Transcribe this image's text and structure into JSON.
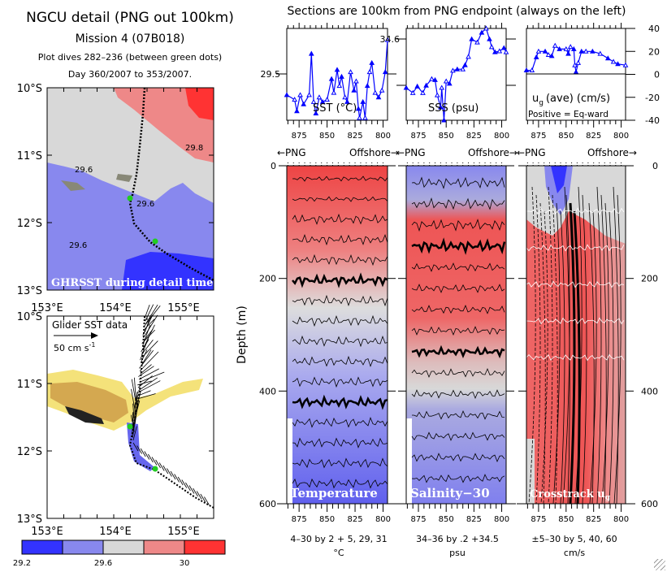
{
  "left": {
    "title": "NGCU detail (PNG out 100km)",
    "mission": "Mission 4 (07B018)",
    "dives": "Plot dives 282–236 (between green dots)",
    "days": "Day 360/2007 to 353/2007.",
    "lat_labels": [
      "10°S",
      "11°S",
      "12°S",
      "13°S"
    ],
    "lon_labels": [
      "153°E",
      "154°E",
      "155°E"
    ],
    "map1_caption": "GHRSST during detail time",
    "map1_contours": [
      "29.6",
      "29.6",
      "29.6",
      "29.8"
    ],
    "map2_caption": "Glider SST data",
    "vector_scale": "50 cm s",
    "vector_scale_exp": "-1",
    "colorbar": {
      "colors": [
        "#3333ff",
        "#8888ee",
        "#d8d8d8",
        "#ee8888",
        "#ff3333"
      ],
      "labels": [
        "29.2",
        "29.6",
        "30"
      ]
    }
  },
  "right": {
    "title": "Sections are 100km from PNG endpoint (always on the left)",
    "direction_left": "←PNG",
    "direction_right": "Offshore→",
    "depth_label": "Depth (m)",
    "depth_ticks": [
      "0",
      "200",
      "400",
      "600"
    ],
    "x_ticks": [
      "875",
      "850",
      "825",
      "800"
    ]
  },
  "chart_data": [
    {
      "type": "line",
      "name": "sst",
      "title": "SST (°C)",
      "xlabel": "",
      "ylabel": "",
      "xlim": [
        886,
        796
      ],
      "ylim": [
        29.3,
        29.7
      ],
      "ytick_labels": [
        "29.5"
      ],
      "color": "#0000ff",
      "x": [
        886,
        879,
        877,
        874,
        871,
        866,
        864,
        862,
        860,
        857,
        854,
        850,
        846,
        844,
        841,
        839,
        837,
        834,
        832,
        829,
        826,
        824,
        822,
        821,
        818,
        816,
        814,
        812,
        810,
        807,
        804,
        801,
        798,
        796
      ],
      "y": [
        29.41,
        29.39,
        29.34,
        29.41,
        29.37,
        29.41,
        29.59,
        29.38,
        29.33,
        29.4,
        29.38,
        29.39,
        29.48,
        29.42,
        29.52,
        29.45,
        29.49,
        29.4,
        29.38,
        29.51,
        29.43,
        29.47,
        29.35,
        29.31,
        29.38,
        29.31,
        29.45,
        29.51,
        29.55,
        29.42,
        29.4,
        29.43,
        29.51,
        29.65
      ]
    },
    {
      "type": "line",
      "name": "sss",
      "title": "SSS (psu)",
      "xlim": [
        886,
        796
      ],
      "ylim": [
        34.425,
        34.623
      ],
      "ytick_labels": [
        "34.6"
      ],
      "color": "#0000ff",
      "x": [
        886,
        880,
        876,
        871,
        868,
        863,
        860,
        858,
        855,
        854,
        852,
        850,
        847,
        844,
        840,
        835,
        833,
        830,
        827,
        822,
        818,
        814,
        811,
        809,
        806,
        802,
        798,
        796
      ],
      "y": [
        34.495,
        34.484,
        34.498,
        34.484,
        34.5,
        34.514,
        34.512,
        34.479,
        34.453,
        34.495,
        34.425,
        34.509,
        34.504,
        34.532,
        34.535,
        34.535,
        34.544,
        34.562,
        34.6,
        34.593,
        34.614,
        34.623,
        34.6,
        34.583,
        34.572,
        34.574,
        34.581,
        34.572
      ]
    },
    {
      "type": "line",
      "name": "ug",
      "title": "u",
      "title_sub": "g",
      "title_rest": "(ave) (cm/s)",
      "note": "Positive = Eq-ward",
      "xlim": [
        886,
        796
      ],
      "ylim": [
        -40,
        40
      ],
      "ytick_labels": [
        "40",
        "20",
        "0",
        "-20",
        "-40"
      ],
      "color": "#0000ff",
      "x": [
        886,
        881,
        877,
        875,
        869,
        866,
        863,
        860,
        856,
        850,
        848,
        846,
        843,
        842,
        841,
        839,
        836,
        832,
        826,
        819,
        812,
        807,
        803,
        796
      ],
      "y": [
        3.5,
        3.5,
        15,
        20,
        20,
        17,
        16,
        25,
        22,
        22,
        18,
        24,
        22,
        8,
        2,
        10,
        20,
        20,
        20,
        18,
        14,
        11,
        9,
        8
      ]
    }
  ],
  "sections": [
    {
      "label": "Temperature",
      "caption": "4–30 by 2 + 5, 29, 31",
      "units": "°C"
    },
    {
      "label": "Salinity−30",
      "caption": "34–36 by .2 +34.5",
      "units": "psu"
    },
    {
      "label": "Crosstrack u",
      "label_sub": "g",
      "caption": "±5–30 by 5, 40, 60",
      "units": "cm/s"
    }
  ]
}
